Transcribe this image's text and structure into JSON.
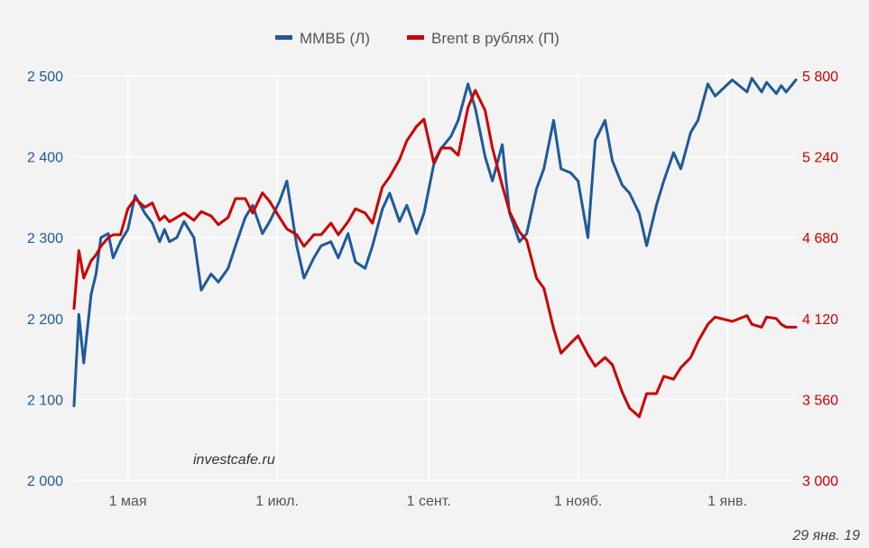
{
  "chart_data": {
    "type": "line",
    "grid": true,
    "legend_placement": "top-center",
    "x_tick_labels": [
      "1 мая",
      "1 июл.",
      "1 сент.",
      "1 нояб.",
      "1 янв."
    ],
    "y_left": {
      "ticks": [
        "2 000",
        "2 100",
        "2 200",
        "2 300",
        "2 400",
        "2 500"
      ],
      "ylim": [
        2000,
        2500
      ],
      "color": "#1f5a99"
    },
    "y_right": {
      "ticks": [
        "3 000",
        "3 560",
        "4 120",
        "4 680",
        "5 240",
        "5 800"
      ],
      "ylim": [
        3000,
        5800
      ],
      "color": "#cc0000"
    },
    "series": [
      {
        "name": "ММВБ (Л)",
        "axis": "left",
        "color": "#1f5a99",
        "x": [
          "2018-04-09",
          "2018-04-11",
          "2018-04-13",
          "2018-04-16",
          "2018-04-18",
          "2018-04-20",
          "2018-04-23",
          "2018-04-25",
          "2018-04-28",
          "2018-05-01",
          "2018-05-04",
          "2018-05-08",
          "2018-05-11",
          "2018-05-14",
          "2018-05-16",
          "2018-05-18",
          "2018-05-21",
          "2018-05-24",
          "2018-05-28",
          "2018-05-31",
          "2018-06-04",
          "2018-06-07",
          "2018-06-11",
          "2018-06-14",
          "2018-06-18",
          "2018-06-21",
          "2018-06-25",
          "2018-06-28",
          "2018-07-02",
          "2018-07-05",
          "2018-07-09",
          "2018-07-12",
          "2018-07-16",
          "2018-07-19",
          "2018-07-23",
          "2018-07-26",
          "2018-07-30",
          "2018-08-02",
          "2018-08-06",
          "2018-08-09",
          "2018-08-13",
          "2018-08-16",
          "2018-08-20",
          "2018-08-23",
          "2018-08-27",
          "2018-08-30",
          "2018-09-03",
          "2018-09-06",
          "2018-09-10",
          "2018-09-13",
          "2018-09-17",
          "2018-09-20",
          "2018-09-24",
          "2018-09-27",
          "2018-10-01",
          "2018-10-04",
          "2018-10-08",
          "2018-10-11",
          "2018-10-15",
          "2018-10-18",
          "2018-10-22",
          "2018-10-25",
          "2018-10-29",
          "2018-11-01",
          "2018-11-05",
          "2018-11-08",
          "2018-11-12",
          "2018-11-15",
          "2018-11-19",
          "2018-11-22",
          "2018-11-26",
          "2018-11-29",
          "2018-12-03",
          "2018-12-06",
          "2018-12-10",
          "2018-12-13",
          "2018-12-17",
          "2018-12-20",
          "2018-12-24",
          "2018-12-27",
          "2019-01-03",
          "2019-01-09",
          "2019-01-11",
          "2019-01-15",
          "2019-01-17",
          "2019-01-21",
          "2019-01-23",
          "2019-01-25",
          "2019-01-29"
        ],
        "values": [
          2092,
          2205,
          2145,
          2230,
          2255,
          2300,
          2305,
          2275,
          2295,
          2310,
          2352,
          2330,
          2318,
          2295,
          2310,
          2295,
          2300,
          2320,
          2300,
          2235,
          2255,
          2245,
          2262,
          2290,
          2325,
          2340,
          2305,
          2320,
          2345,
          2370,
          2290,
          2250,
          2275,
          2290,
          2295,
          2275,
          2305,
          2270,
          2262,
          2290,
          2335,
          2355,
          2320,
          2340,
          2305,
          2330,
          2390,
          2410,
          2425,
          2445,
          2490,
          2460,
          2400,
          2370,
          2415,
          2330,
          2295,
          2305,
          2360,
          2385,
          2445,
          2385,
          2380,
          2370,
          2300,
          2420,
          2445,
          2395,
          2365,
          2355,
          2330,
          2290,
          2340,
          2370,
          2405,
          2385,
          2430,
          2445,
          2490,
          2475,
          2495,
          2480,
          2497,
          2480,
          2492,
          2478,
          2488,
          2480,
          2495
        ]
      },
      {
        "name": "Brent в рублях (П)",
        "axis": "right",
        "color": "#cc0000",
        "x": [
          "2018-04-09",
          "2018-04-11",
          "2018-04-13",
          "2018-04-16",
          "2018-04-18",
          "2018-04-20",
          "2018-04-23",
          "2018-04-25",
          "2018-04-28",
          "2018-05-01",
          "2018-05-04",
          "2018-05-08",
          "2018-05-11",
          "2018-05-14",
          "2018-05-16",
          "2018-05-18",
          "2018-05-21",
          "2018-05-24",
          "2018-05-28",
          "2018-05-31",
          "2018-06-04",
          "2018-06-07",
          "2018-06-11",
          "2018-06-14",
          "2018-06-18",
          "2018-06-21",
          "2018-06-25",
          "2018-06-28",
          "2018-07-02",
          "2018-07-05",
          "2018-07-09",
          "2018-07-12",
          "2018-07-16",
          "2018-07-19",
          "2018-07-23",
          "2018-07-26",
          "2018-07-30",
          "2018-08-02",
          "2018-08-06",
          "2018-08-09",
          "2018-08-13",
          "2018-08-16",
          "2018-08-20",
          "2018-08-23",
          "2018-08-27",
          "2018-08-30",
          "2018-09-03",
          "2018-09-06",
          "2018-09-10",
          "2018-09-13",
          "2018-09-17",
          "2018-09-20",
          "2018-09-24",
          "2018-09-27",
          "2018-10-01",
          "2018-10-04",
          "2018-10-08",
          "2018-10-11",
          "2018-10-15",
          "2018-10-18",
          "2018-10-22",
          "2018-10-25",
          "2018-10-29",
          "2018-11-01",
          "2018-11-05",
          "2018-11-08",
          "2018-11-12",
          "2018-11-15",
          "2018-11-19",
          "2018-11-22",
          "2018-11-26",
          "2018-11-29",
          "2018-12-03",
          "2018-12-06",
          "2018-12-10",
          "2018-12-13",
          "2018-12-17",
          "2018-12-20",
          "2018-12-24",
          "2018-12-27",
          "2019-01-03",
          "2019-01-09",
          "2019-01-11",
          "2019-01-15",
          "2019-01-17",
          "2019-01-21",
          "2019-01-23",
          "2019-01-25",
          "2019-01-29"
        ],
        "values": [
          4190,
          4590,
          4400,
          4520,
          4560,
          4620,
          4680,
          4700,
          4700,
          4880,
          4950,
          4890,
          4920,
          4800,
          4830,
          4790,
          4820,
          4850,
          4800,
          4860,
          4830,
          4770,
          4820,
          4950,
          4950,
          4850,
          4990,
          4930,
          4820,
          4740,
          4700,
          4620,
          4700,
          4700,
          4780,
          4700,
          4790,
          4880,
          4850,
          4780,
          5030,
          5100,
          5220,
          5350,
          5450,
          5500,
          5200,
          5300,
          5300,
          5250,
          5580,
          5700,
          5560,
          5300,
          5040,
          4860,
          4720,
          4660,
          4400,
          4330,
          4050,
          3880,
          3950,
          4000,
          3870,
          3790,
          3850,
          3800,
          3610,
          3500,
          3440,
          3600,
          3600,
          3720,
          3700,
          3780,
          3850,
          3960,
          4080,
          4130,
          4100,
          4140,
          4080,
          4060,
          4130,
          4120,
          4080,
          4060,
          4060
        ]
      }
    ]
  },
  "watermark": "investcafe.ru",
  "date_stamp": "29 янв. 19"
}
